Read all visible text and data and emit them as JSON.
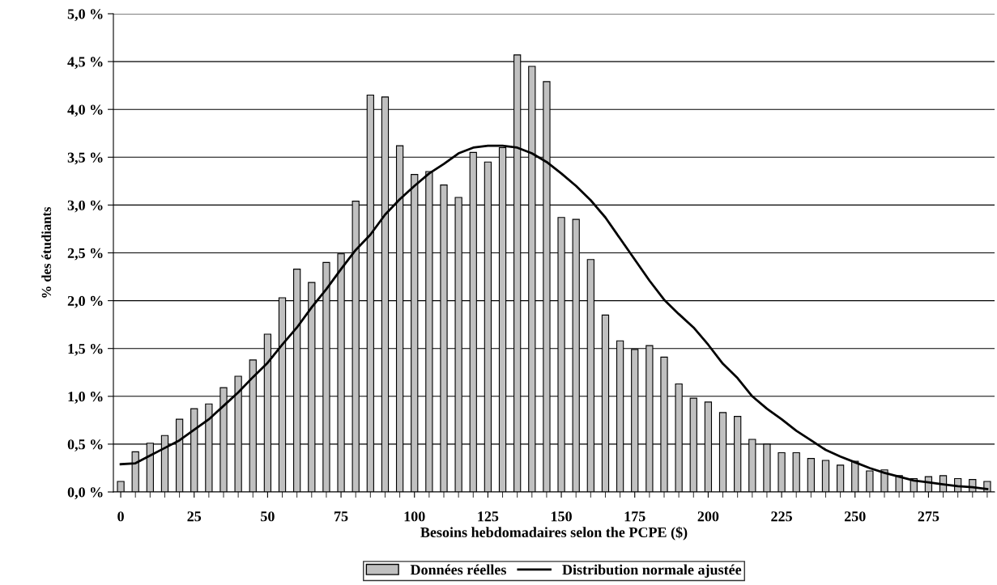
{
  "chart_data": {
    "type": "bar",
    "xlabel": "Besoins hebdomadaires selon the PCPE ($)",
    "ylabel": "% des étudiants",
    "categories": [
      "0",
      null,
      null,
      null,
      null,
      "25",
      null,
      null,
      null,
      null,
      "50",
      null,
      null,
      null,
      null,
      "75",
      null,
      null,
      null,
      null,
      "100",
      null,
      null,
      null,
      null,
      "125",
      null,
      null,
      null,
      null,
      "150",
      null,
      null,
      null,
      null,
      "175",
      null,
      null,
      null,
      null,
      "200",
      null,
      null,
      null,
      null,
      "225",
      null,
      null,
      null,
      null,
      "250",
      null,
      null,
      null,
      null,
      "275",
      null,
      null,
      null,
      null
    ],
    "series": [
      {
        "name": "Données réelles",
        "color": "#c0c0c0",
        "values": [
          0.11,
          0.42,
          0.51,
          0.59,
          0.76,
          0.87,
          0.92,
          1.09,
          1.21,
          1.38,
          1.65,
          2.03,
          2.33,
          2.19,
          2.4,
          2.49,
          3.04,
          4.15,
          4.13,
          3.62,
          3.32,
          3.35,
          3.21,
          3.08,
          3.55,
          3.45,
          3.6,
          4.57,
          4.45,
          4.29,
          2.87,
          2.85,
          2.43,
          1.85,
          1.58,
          1.49,
          1.53,
          1.41,
          1.13,
          0.98,
          0.94,
          0.83,
          0.79,
          0.55,
          0.5,
          0.41,
          0.41,
          0.35,
          0.33,
          0.28,
          0.32,
          0.22,
          0.23,
          0.17,
          0.14,
          0.16,
          0.17,
          0.14,
          0.13,
          0.11
        ]
      },
      {
        "name": "Distribution normale ajustée",
        "type": "line",
        "color": "#000000",
        "values": [
          0.29,
          0.3,
          0.38,
          0.46,
          0.54,
          0.65,
          0.76,
          0.9,
          1.04,
          1.2,
          1.35,
          1.54,
          1.72,
          1.93,
          2.12,
          2.33,
          2.53,
          2.69,
          2.9,
          3.06,
          3.2,
          3.33,
          3.43,
          3.54,
          3.6,
          3.62,
          3.62,
          3.6,
          3.54,
          3.45,
          3.33,
          3.2,
          3.05,
          2.87,
          2.65,
          2.43,
          2.21,
          2.01,
          1.86,
          1.72,
          1.54,
          1.34,
          1.19,
          1.0,
          0.87,
          0.76,
          0.64,
          0.54,
          0.44,
          0.37,
          0.31,
          0.25,
          0.2,
          0.16,
          0.12,
          0.1,
          0.08,
          0.06,
          0.05,
          0.03
        ]
      }
    ],
    "ylim": [
      0,
      5
    ],
    "yticks": [
      {
        "value": 0,
        "label": "0,0 %"
      },
      {
        "value": 0.5,
        "label": "0,5 %"
      },
      {
        "value": 1,
        "label": "1,0 %"
      },
      {
        "value": 1.5,
        "label": "1,5 %"
      },
      {
        "value": 2,
        "label": "2,0 %"
      },
      {
        "value": 2.5,
        "label": "2,5 %"
      },
      {
        "value": 3,
        "label": "3,0 %"
      },
      {
        "value": 3.5,
        "label": "3,5 %"
      },
      {
        "value": 4,
        "label": "4,0 %"
      },
      {
        "value": 4.5,
        "label": "4,5 %"
      },
      {
        "value": 5,
        "label": "5,0 %"
      }
    ],
    "grid": "y",
    "legend": "bottom",
    "marker": "none",
    "line_style": "solid"
  }
}
